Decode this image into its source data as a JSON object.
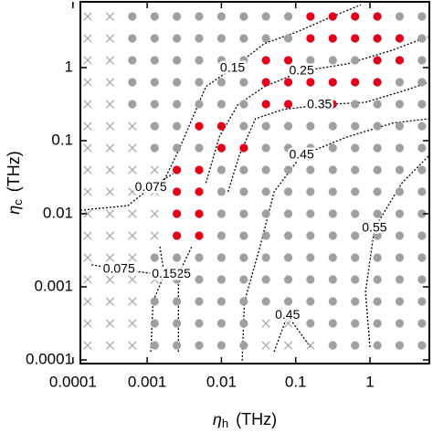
{
  "chart_data": {
    "type": "scatter",
    "x_label": "η",
    "x_label_sub": "h",
    "x_label_unit": "(THz)",
    "y_label": "η",
    "y_label_sub": "c",
    "y_label_unit": "(THz)",
    "log_x": true,
    "log_y": true,
    "xlim": [
      0.000126,
      6.31
    ],
    "ylim": [
      8.91e-05,
      7.94
    ],
    "xticks": [
      0.0001,
      0.001,
      0.01,
      0.1,
      1
    ],
    "yticks": [
      0.0001,
      0.001,
      0.01,
      0.1,
      1
    ],
    "x": [
      0.000158,
      0.000316,
      0.000631,
      0.00126,
      0.00251,
      0.00501,
      0.01,
      0.02,
      0.0398,
      0.0794,
      0.158,
      0.316,
      0.631,
      1.26,
      2.51,
      5.01
    ],
    "y": [
      0.000158,
      0.000316,
      0.000631,
      0.00126,
      0.00251,
      0.00501,
      0.01,
      0.02,
      0.0398,
      0.0794,
      0.158,
      0.316,
      0.631,
      1.26,
      2.51,
      5.01
    ],
    "marker_colors": {
      "x": "#a6a6a6",
      "o": "#a0a0a0",
      "r": "#e3001b"
    },
    "markers": [
      "xxxoooooxxxooooo",
      "xxxoooooxxoooooo",
      "xxxooooooooooooo",
      "xxxxoooooooooooo",
      "xxxooooooooooooo",
      "xxxxrroooooooooo",
      "xxxxrroooooooooo",
      "xxxxrroooooooooo",
      "xxxxrroooooooooo",
      "xxxooorroooooooo",
      "xxxoorrooooooooo",
      "xxoooooorrrroooo",
      "xxoooooorrrrrroo",
      "xxoooooorrooorro",
      "xxoooooooorrrrro",
      "xxoooooooorrrroo"
    ],
    "contours": [
      {
        "name": "0.15",
        "x": [
          0.00162,
          0.00263,
          0.00427,
          0.00617,
          0.0141,
          0.038,
          0.105,
          0.282,
          0.759
        ],
        "y": [
          0.0263,
          0.0724,
          0.229,
          0.55,
          0.977,
          2.14,
          3.09,
          4.79,
          7.24
        ]
      },
      {
        "name": "0.25",
        "x": [
          0.00617,
          0.00933,
          0.0166,
          0.038,
          0.12,
          0.49,
          2.04,
          6.31
        ],
        "y": [
          0.0263,
          0.112,
          0.309,
          0.55,
          0.891,
          1.12,
          1.74,
          2.69
        ]
      },
      {
        "name": "0.35",
        "x": [
          0.0123,
          0.0174,
          0.0288,
          0.0676,
          0.209,
          0.871,
          2.69,
          6.31
        ],
        "y": [
          0.02,
          0.0631,
          0.2,
          0.266,
          0.309,
          0.335,
          0.473,
          0.631
        ]
      },
      {
        "name": "0.45",
        "x": [
          0.019,
          0.0204,
          0.0331,
          0.0513,
          0.12,
          0.49,
          2.04,
          6.31
        ],
        "y": [
          9.77e-05,
          0.000631,
          0.00355,
          0.02,
          0.0631,
          0.112,
          0.174,
          0.2
        ]
      },
      {
        "name": "0.55",
        "x": [
          1,
          0.871,
          1.15,
          2.69,
          6.31
        ],
        "y": [
          0.00015,
          0.000841,
          0.00631,
          0.0263,
          0.0631
        ]
      },
      {
        "name": "0.075",
        "x": [
          0.000126,
          0.00055,
          0.00112,
          0.00224
        ],
        "y": [
          0.0112,
          0.0129,
          0.0229,
          0.0355
        ]
      },
      {
        "name": "0.075",
        "x": [
          0.000178,
          0.000417,
          0.00148
        ],
        "y": [
          0.002,
          0.00174,
          0.00148
        ]
      },
      {
        "name": "0.25",
        "x": [
          0.00263,
          0.00263,
          0.00398
        ],
        "y": [
          0.000129,
          0.00148,
          0.00355
        ]
      },
      {
        "name": "0.15",
        "x": [
          0.00112,
          0.0012,
          0.0017,
          0.00148
        ],
        "y": [
          0.000129,
          0.000631,
          0.00148,
          0.00355
        ]
      },
      {
        "name": "0.45",
        "x": [
          0.0513,
          0.0776,
          0.158
        ],
        "y": [
          0.000129,
          0.000407,
          0.00015
        ]
      }
    ]
  }
}
